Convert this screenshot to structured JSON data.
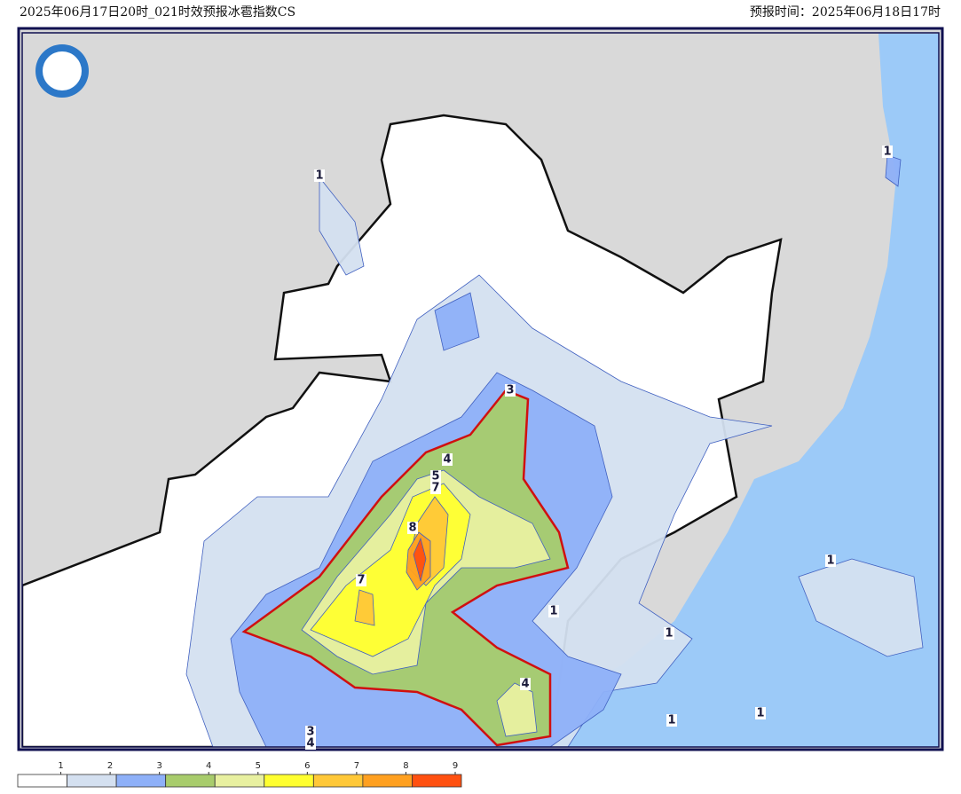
{
  "header": {
    "title": "2025年06月17日20时_021时效预报冰雹指数CS",
    "issue_time": "预报时间：2025年06月18日17时"
  },
  "contour_labels": [
    1,
    1,
    3,
    4,
    5,
    7,
    8,
    7,
    1,
    1,
    4,
    1,
    1,
    1,
    3,
    4
  ],
  "legend": {
    "ticks": [
      1,
      2,
      3,
      4,
      5,
      6,
      7,
      8,
      9
    ],
    "colors": [
      "#ffffff",
      "#d4e0f0",
      "#8eb0f8",
      "#a8cc6c",
      "#e8f0a0",
      "#ffff30",
      "#ffc838",
      "#ffa020",
      "#ff5010"
    ]
  }
}
